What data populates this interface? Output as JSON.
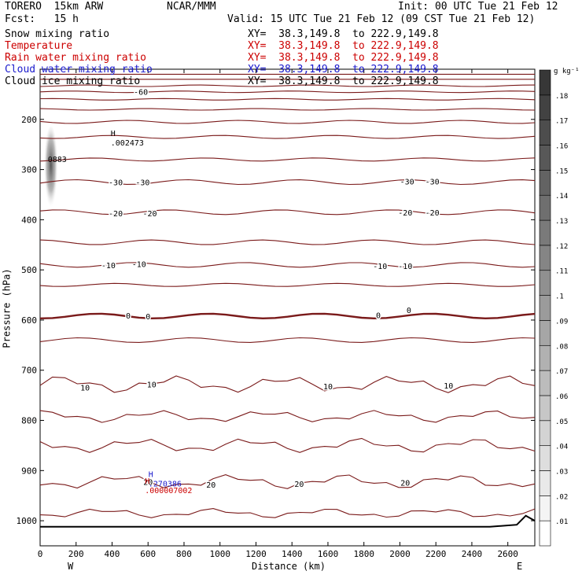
{
  "header": {
    "model": "TORERO  15km ARW",
    "org": "NCAR/MMM",
    "init": "Init: 00 UTC Tue 21 Feb 12",
    "fcst": "Fcst:   15 h",
    "valid": "Valid: 15 UTC Tue 21 Feb 12 (09 CST Tue 21 Feb 12)"
  },
  "fields": [
    {
      "name": "Snow mixing ratio",
      "xy": "XY=  38.3,149.8  to 222.9,149.8",
      "color": "#000000"
    },
    {
      "name": "Temperature",
      "xy": "XY=  38.3,149.8  to 222.9,149.8",
      "color": "#cc0000"
    },
    {
      "name": "Rain water mixing ratio",
      "xy": "XY=  38.3,149.8  to 222.9,149.8",
      "color": "#cc0000"
    },
    {
      "name": "Cloud water mixing ratio",
      "xy": "XY=  38.3,149.8  to 222.9,149.8",
      "color": "#1a1acc"
    },
    {
      "name": "Cloud ice mixing ratio",
      "xy": "XY=  38.3,149.8  to 222.9,149.8",
      "color": "#000000"
    }
  ],
  "chart_data": {
    "type": "cross-section",
    "xlabel": "Distance (km)",
    "ylabel": "Pressure (hPa)",
    "xlim": [
      0,
      2750
    ],
    "ylim": [
      1050,
      100
    ],
    "xticks": [
      0,
      200,
      400,
      600,
      800,
      1000,
      1200,
      1400,
      1600,
      1800,
      2000,
      2200,
      2400,
      2600
    ],
    "yticks": [
      200,
      300,
      400,
      500,
      600,
      700,
      800,
      900,
      1000
    ],
    "x_end_labels": {
      "left": "W",
      "right": "E"
    },
    "colorbar": {
      "unit": "g kg⁻¹",
      "levels": [
        ".01",
        ".02",
        ".03",
        ".04",
        ".05",
        ".06",
        ".07",
        ".08",
        ".09",
        ".1",
        ".11",
        ".12",
        ".13",
        ".14",
        ".15",
        ".16",
        ".17",
        ".18"
      ]
    },
    "isotherm_labels": [
      {
        "text": "-60",
        "x": 560,
        "p": 145
      },
      {
        "text": "-30",
        "x": 420,
        "p": 325
      },
      {
        "text": "-30",
        "x": 570,
        "p": 325
      },
      {
        "text": "-30",
        "x": 2040,
        "p": 323
      },
      {
        "text": "-30",
        "x": 2180,
        "p": 323
      },
      {
        "text": "-20",
        "x": 420,
        "p": 387
      },
      {
        "text": "-20",
        "x": 610,
        "p": 387
      },
      {
        "text": "-20",
        "x": 2030,
        "p": 385
      },
      {
        "text": "-20",
        "x": 2180,
        "p": 385
      },
      {
        "text": "-10",
        "x": 380,
        "p": 490
      },
      {
        "text": "-10",
        "x": 550,
        "p": 488
      },
      {
        "text": "-10",
        "x": 1890,
        "p": 492
      },
      {
        "text": "-10",
        "x": 2030,
        "p": 492
      },
      {
        "text": "0",
        "x": 490,
        "p": 591
      },
      {
        "text": "0",
        "x": 600,
        "p": 592
      },
      {
        "text": "0",
        "x": 1880,
        "p": 590
      },
      {
        "text": "0",
        "x": 2050,
        "p": 580
      },
      {
        "text": "10",
        "x": 250,
        "p": 734
      },
      {
        "text": "10",
        "x": 620,
        "p": 728
      },
      {
        "text": "10",
        "x": 1600,
        "p": 732
      },
      {
        "text": "10",
        "x": 2270,
        "p": 730
      },
      {
        "text": "20",
        "x": 600,
        "p": 922
      },
      {
        "text": "20",
        "x": 950,
        "p": 928
      },
      {
        "text": "20",
        "x": 1440,
        "p": 926
      },
      {
        "text": "20",
        "x": 2030,
        "p": 924
      }
    ],
    "extrema": [
      {
        "mark": "H",
        "value": ".002473",
        "x": 410,
        "p": 252,
        "color": "#000000"
      },
      {
        "mark": "",
        "value": "0883",
        "x": 60,
        "p": 285,
        "color": "#000000"
      },
      {
        "mark": "H",
        "value": ".270386",
        "x": 620,
        "p": 932,
        "color": "#1a1acc"
      },
      {
        "mark": "H",
        "value": ".000007002",
        "x": 600,
        "p": 945,
        "color": "#cc0000"
      }
    ]
  }
}
